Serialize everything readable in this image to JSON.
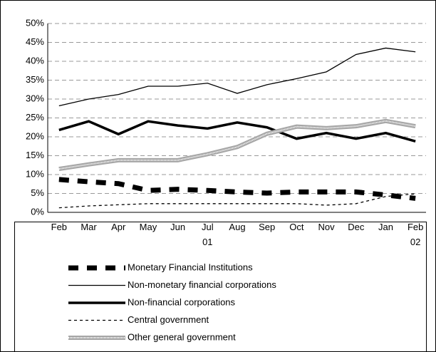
{
  "chart_data": {
    "type": "line",
    "categories": [
      "Feb",
      "Mar",
      "Apr",
      "May",
      "Jun",
      "Jul\n01",
      "Aug",
      "Sep",
      "Oct",
      "Nov",
      "Dec",
      "Jan",
      "Feb\n02"
    ],
    "series": [
      {
        "name": "Monetary Financial Institutions",
        "color": "#000000",
        "values": [
          8.7,
          8.1,
          7.6,
          5.8,
          6.1,
          5.8,
          5.4,
          5.1,
          5.4,
          5.4,
          5.4,
          4.6,
          3.7
        ]
      },
      {
        "name": "Non-monetary financial corporations",
        "color": "#000000",
        "values": [
          28.2,
          30,
          31.2,
          33.4,
          33.4,
          34.2,
          31.5,
          33.8,
          35.4,
          37.2,
          41.8,
          43.5,
          42.5
        ]
      },
      {
        "name": "Non-financial corporations",
        "color": "#000000",
        "values": [
          21.8,
          24.1,
          20.7,
          24.1,
          23,
          22.2,
          23.8,
          22.5,
          19.5,
          21,
          19.5,
          21,
          18.8
        ]
      },
      {
        "name": "Central government",
        "color": "#000000",
        "values": [
          1.2,
          1.7,
          2,
          2.3,
          2.3,
          2.3,
          2.3,
          2.3,
          2.3,
          1.9,
          2.3,
          4.2,
          4.9
        ]
      },
      {
        "name": "Other general government",
        "color": "#a6a6a6",
        "values": [
          11.5,
          12.7,
          13.8,
          13.8,
          13.8,
          15.4,
          17.3,
          20.8,
          22.7,
          22.3,
          22.8,
          24.2,
          22.8
        ]
      }
    ],
    "ylim": [
      0,
      50
    ],
    "yticks": [
      {
        "value": 0,
        "label": "0%"
      },
      {
        "value": 5,
        "label": "5%"
      },
      {
        "value": 10,
        "label": "10%"
      },
      {
        "value": 15,
        "label": "15%"
      },
      {
        "value": 20,
        "label": "20%"
      },
      {
        "value": 25,
        "label": "25%"
      },
      {
        "value": 30,
        "label": "30%"
      },
      {
        "value": 35,
        "label": "35%"
      },
      {
        "value": 40,
        "label": "40%"
      },
      {
        "value": 45,
        "label": "45%"
      },
      {
        "value": 50,
        "label": "50%"
      }
    ],
    "grid": true
  }
}
